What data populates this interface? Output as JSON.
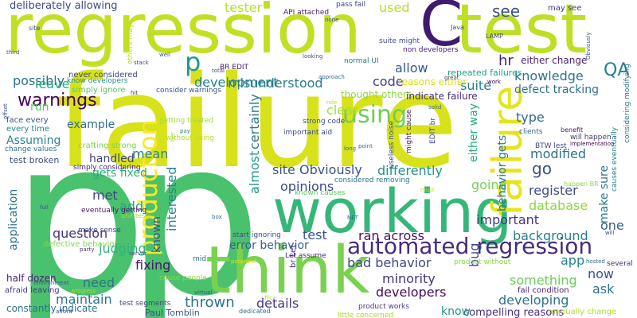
{
  "words": [
    {
      "text": "failure",
      "color": "#d7e21a",
      "vertical": false
    },
    {
      "text": "regression",
      "color": "#c2df23",
      "vertical": false
    },
    {
      "text": "test",
      "color": "#bddf26",
      "vertical": false
    },
    {
      "text": "C",
      "color": "#3f1a6e",
      "vertical": false
    },
    {
      "text": "p",
      "color": "#4ac16d",
      "vertical": false
    },
    {
      "text": "p",
      "color": "#4ac16d",
      "vertical": false
    },
    {
      "text": "working",
      "color": "#35b779",
      "vertical": false
    },
    {
      "text": "think",
      "color": "#7ad151",
      "vertical": false
    },
    {
      "text": "automated regression",
      "color": "#472c7a",
      "vertical": false
    },
    {
      "text": "production",
      "color": "#fde725",
      "vertical": true
    },
    {
      "text": "failure",
      "color": "#e5e419",
      "vertical": true
    },
    {
      "text": "using",
      "color": "#6ece58",
      "vertical": false
    },
    {
      "text": "p",
      "color": "#1f988b",
      "vertical": false
    },
    {
      "text": "see",
      "color": "#3b528b",
      "vertical": false
    },
    {
      "text": "QA",
      "color": "#26828e",
      "vertical": false
    },
    {
      "text": "warnings",
      "color": "#440154",
      "vertical": false
    },
    {
      "text": "deliberately allowing",
      "color": "#3e4a89",
      "vertical": false
    },
    {
      "text": "tester",
      "color": "#b5de2b",
      "vertical": false
    },
    {
      "text": "used",
      "color": "#b8de29",
      "vertical": false
    },
    {
      "text": "possibly",
      "color": "#2d718e",
      "vertical": false
    },
    {
      "text": "misunderstood",
      "color": "#297b8e",
      "vertical": false
    },
    {
      "text": "development",
      "color": "#25848e",
      "vertical": false
    },
    {
      "text": "allow",
      "color": "#38588c",
      "vertical": false
    },
    {
      "text": "code",
      "color": "#433e85",
      "vertical": false
    },
    {
      "text": "hr",
      "color": "#482374",
      "vertical": false
    },
    {
      "text": "either change",
      "color": "#481f70",
      "vertical": false
    },
    {
      "text": "knowledge",
      "color": "#2c728e",
      "vertical": false
    },
    {
      "text": "suite",
      "color": "#27808e",
      "vertical": false
    },
    {
      "text": "defect tracking",
      "color": "#2e6f8e",
      "vertical": false
    },
    {
      "text": "leave",
      "color": "#25ab82",
      "vertical": false
    },
    {
      "text": "run",
      "color": "#5ec962",
      "vertical": false
    },
    {
      "text": "clear",
      "color": "#a8db34",
      "vertical": false
    },
    {
      "text": "thought others",
      "color": "#8fd744",
      "vertical": false
    },
    {
      "text": "reasons either",
      "color": "#dde318",
      "vertical": false
    },
    {
      "text": "indicate failure",
      "color": "#472d7b",
      "vertical": false
    },
    {
      "text": "repeated failures",
      "color": "#1fa088",
      "vertical": false
    },
    {
      "text": "example",
      "color": "#306a8e",
      "vertical": false
    },
    {
      "text": "mean",
      "color": "#25858e",
      "vertical": false
    },
    {
      "text": "Assuming",
      "color": "#26828e",
      "vertical": false
    },
    {
      "text": "handled",
      "color": "#414487",
      "vertical": false
    },
    {
      "text": "certainly",
      "color": "#2a788e",
      "vertical": true
    },
    {
      "text": "almost",
      "color": "#1e9b8a",
      "vertical": true
    },
    {
      "text": "site Obviously",
      "color": "#3b518b",
      "vertical": false
    },
    {
      "text": "differently",
      "color": "#20928c",
      "vertical": false
    },
    {
      "text": "go",
      "color": "#3c4f8a",
      "vertical": false
    },
    {
      "text": "type",
      "color": "#31688e",
      "vertical": false
    },
    {
      "text": "modified",
      "color": "#2c728e",
      "vertical": false
    },
    {
      "text": "opinions",
      "color": "#3e4989",
      "vertical": false
    },
    {
      "text": "going",
      "color": "#77d153",
      "vertical": false
    },
    {
      "text": "register",
      "color": "#3d4d8a",
      "vertical": false
    },
    {
      "text": "database",
      "color": "#8bd646",
      "vertical": false
    },
    {
      "text": "make sure",
      "color": "#2a788e",
      "vertical": true
    },
    {
      "text": "gets fixed",
      "color": "#27ad81",
      "vertical": false
    },
    {
      "text": "interested",
      "color": "#24878e",
      "vertical": true
    },
    {
      "text": "met",
      "color": "#404688",
      "vertical": false
    },
    {
      "text": "add",
      "color": "#20a386",
      "vertical": false
    },
    {
      "text": "question",
      "color": "#46337f",
      "vertical": false
    },
    {
      "text": "judging",
      "color": "#2fb47c",
      "vertical": false
    },
    {
      "text": "known",
      "color": "#3b528b",
      "vertical": true
    },
    {
      "text": "fixing",
      "color": "#481769",
      "vertical": false
    },
    {
      "text": "error behavior",
      "color": "#33638d",
      "vertical": false
    },
    {
      "text": "ran across",
      "color": "#471164",
      "vertical": false
    },
    {
      "text": "important",
      "color": "#453581",
      "vertical": false
    },
    {
      "text": "background",
      "color": "#26818e",
      "vertical": false
    },
    {
      "text": "one",
      "color": "#365d8d",
      "vertical": false
    },
    {
      "text": "app",
      "color": "#26828e",
      "vertical": false
    },
    {
      "text": "test",
      "color": "#39558c",
      "vertical": false
    },
    {
      "text": "bad behavior",
      "color": "#3f4788",
      "vertical": false
    },
    {
      "text": "minority",
      "color": "#46327e",
      "vertical": false
    },
    {
      "text": "bug",
      "color": "#3d4e8a",
      "vertical": true
    },
    {
      "text": "something",
      "color": "#6ccd5a",
      "vertical": false
    },
    {
      "text": "now",
      "color": "#3b528b",
      "vertical": false
    },
    {
      "text": "ask",
      "color": "#2c738e",
      "vertical": false
    },
    {
      "text": "developing",
      "color": "#2c728e",
      "vertical": false
    },
    {
      "text": "developers",
      "color": "#46085c",
      "vertical": false
    },
    {
      "text": "compelling reasons",
      "color": "#46307e",
      "vertical": false
    },
    {
      "text": "thrown",
      "color": "#2c738e",
      "vertical": false
    },
    {
      "text": "details",
      "color": "#453882",
      "vertical": false
    },
    {
      "text": "know",
      "color": "#1f948c",
      "vertical": false
    },
    {
      "text": "need",
      "color": "#2d718e",
      "vertical": false
    },
    {
      "text": "maintain",
      "color": "#2c728e",
      "vertical": false
    },
    {
      "text": "application",
      "color": "#2d718e",
      "vertical": true
    },
    {
      "text": "Paul Tomblin",
      "color": "#3a548c",
      "vertical": false
    },
    {
      "text": "half dozen",
      "color": "#482576",
      "vertical": false
    },
    {
      "text": "constantly indicate",
      "color": "#2c728e",
      "vertical": false
    },
    {
      "text": "test broken",
      "color": "#3e4c8a",
      "vertical": false
    },
    {
      "text": "never considered",
      "color": "#414487",
      "vertical": false
    },
    {
      "text": "simply ignore",
      "color": "#5cc863",
      "vertical": false
    },
    {
      "text": "consider warnings",
      "color": "#3b528b",
      "vertical": false
    },
    {
      "text": "know developers",
      "color": "#21918c",
      "vertical": false
    },
    {
      "text": "face every",
      "color": "#3b528b",
      "vertical": false
    },
    {
      "text": "every time",
      "color": "#24868e",
      "vertical": false
    },
    {
      "text": "crafting strong",
      "color": "#7fd34e",
      "vertical": false
    },
    {
      "text": "simply considering",
      "color": "#482475",
      "vertical": false
    },
    {
      "text": "change values",
      "color": "#2b748e",
      "vertical": false
    },
    {
      "text": "without using",
      "color": "#b5de2b",
      "vertical": false
    },
    {
      "text": "getting treated",
      "color": "#a2da37",
      "vertical": false
    },
    {
      "text": "eventually getting",
      "color": "#481769",
      "vertical": false
    },
    {
      "text": "unit tests",
      "color": "#b0dd2f",
      "vertical": false
    },
    {
      "text": "make sense",
      "color": "#3f4788",
      "vertical": false
    },
    {
      "text": "defective behavior",
      "color": "#84d44b",
      "vertical": false
    },
    {
      "text": "cause people",
      "color": "#8bd646",
      "vertical": false
    },
    {
      "text": "afraid leaving",
      "color": "#443983",
      "vertical": false
    },
    {
      "text": "test segments",
      "color": "#3e4a89",
      "vertical": false
    },
    {
      "text": "product works",
      "color": "#433e85",
      "vertical": false
    },
    {
      "text": "little concerned",
      "color": "#a0da39",
      "vertical": false
    },
    {
      "text": "fail condition",
      "color": "#482173",
      "vertical": false
    },
    {
      "text": "manually change",
      "color": "#b2dd2d",
      "vertical": false
    },
    {
      "text": "product without",
      "color": "#8bd646",
      "vertical": false
    },
    {
      "text": "strong code",
      "color": "#3e4c8a",
      "vertical": false
    },
    {
      "text": "important aid",
      "color": "#3f4889",
      "vertical": false
    },
    {
      "text": "considered removing",
      "color": "#2a768e",
      "vertical": false
    },
    {
      "text": "known causes",
      "color": "#5ec962",
      "vertical": false
    },
    {
      "text": "start ignoring",
      "color": "#3d4e8a",
      "vertical": false
    },
    {
      "text": "Let assume",
      "color": "#472a7a",
      "vertical": false
    },
    {
      "text": "dedicated",
      "color": "#2e6e8e",
      "vertical": false
    },
    {
      "text": "BR EDIT",
      "color": "#482071",
      "vertical": false
    },
    {
      "text": "API attached",
      "color": "#481d6f",
      "vertical": false
    },
    {
      "text": "suite might",
      "color": "#3e4a89",
      "vertical": false
    },
    {
      "text": "pass fail",
      "color": "#414487",
      "vertical": false
    },
    {
      "text": "may see",
      "color": "#433e85",
      "vertical": false
    },
    {
      "text": "non developers",
      "color": "#482374",
      "vertical": false
    },
    {
      "text": "normal UI",
      "color": "#2a778e",
      "vertical": false
    },
    {
      "text": "will happen",
      "color": "#44397d",
      "vertical": false
    },
    {
      "text": "BTW lest",
      "color": "#3f4788",
      "vertical": false
    },
    {
      "text": "clients",
      "color": "#31688e",
      "vertical": false
    },
    {
      "text": "benefit",
      "color": "#481b6d",
      "vertical": false
    },
    {
      "text": "considering modifying",
      "color": "#2b758e",
      "vertical": true
    },
    {
      "text": "causes eventually",
      "color": "#277f8e",
      "vertical": true
    },
    {
      "text": "happen BR",
      "color": "#8bd646",
      "vertical": false
    },
    {
      "text": "either way",
      "color": "#25ac82",
      "vertical": true
    },
    {
      "text": "EDIT br",
      "color": "#3f4788",
      "vertical": true
    },
    {
      "text": "behavior gets",
      "color": "#2a788e",
      "vertical": true
    },
    {
      "text": "might cause",
      "color": "#481c6e",
      "vertical": true
    },
    {
      "text": "useless noise",
      "color": "#3b518b",
      "vertical": true
    },
    {
      "text": "br Let",
      "color": "#472d7b",
      "vertical": true
    },
    {
      "text": "total",
      "color": "#3c4f8a",
      "vertical": false
    },
    {
      "text": "hit",
      "color": "#46337f",
      "vertical": false
    },
    {
      "text": "stack",
      "color": "#3e4c8a",
      "vertical": false
    },
    {
      "text": "third",
      "color": "#3b528b",
      "vertical": false
    },
    {
      "text": "site",
      "color": "#3b528b",
      "vertical": false
    },
    {
      "text": "tier",
      "color": "#a0da39",
      "vertical": true
    },
    {
      "text": "Java",
      "color": "#414487",
      "vertical": false
    },
    {
      "text": "LAMP",
      "color": "#3f4788",
      "vertical": false
    },
    {
      "text": "others may",
      "color": "#bddf26",
      "vertical": true
    },
    {
      "text": "pay",
      "color": "#25848e",
      "vertical": false
    },
    {
      "text": "box",
      "color": "#2d708e",
      "vertical": false
    },
    {
      "text": "several",
      "color": "#482979",
      "vertical": false
    },
    {
      "text": "mid",
      "color": "#2a788e",
      "vertical": false
    },
    {
      "text": "point",
      "color": "#2d708e",
      "vertical": false
    },
    {
      "text": "long",
      "color": "#2d708e",
      "vertical": false
    },
    {
      "text": "work",
      "color": "#440154",
      "vertical": false
    },
    {
      "text": "solid",
      "color": "#31688e",
      "vertical": false
    },
    {
      "text": "virtual",
      "color": "#3b528b",
      "vertical": false
    },
    {
      "text": "server",
      "color": "#3b528b",
      "vertical": false
    },
    {
      "text": "party",
      "color": "#46327e",
      "vertical": false
    },
    {
      "text": "full",
      "color": "#3b528b",
      "vertical": false
    },
    {
      "text": "potential",
      "color": "#d8e219",
      "vertical": false
    },
    {
      "text": "NET",
      "color": "#2d708e",
      "vertical": false
    },
    {
      "text": "approach",
      "color": "#31688e",
      "vertical": false
    },
    {
      "text": "great",
      "color": "#3b528b",
      "vertical": false
    },
    {
      "text": "looking",
      "color": "#3b528b",
      "vertical": false
    },
    {
      "text": "idea",
      "color": "#b5de2b",
      "vertical": false
    },
    {
      "text": "well",
      "color": "#3b528b",
      "vertical": false
    },
    {
      "text": "implementation",
      "color": "#440154",
      "vertical": false
    },
    {
      "text": "hosted",
      "color": "#2d708e",
      "vertical": false
    },
    {
      "text": "none",
      "color": "#3b528b",
      "vertical": false
    },
    {
      "text": "afford",
      "color": "#3b528b",
      "vertical": false
    },
    {
      "text": "environment",
      "color": "#3b528b",
      "vertical": false
    },
    {
      "text": "progress",
      "color": "#b5de2b",
      "vertical": false
    },
    {
      "text": "offset",
      "color": "#3b528b",
      "vertical": true
    },
    {
      "text": "Obviously",
      "color": "#3b528b",
      "vertical": true
    },
    {
      "text": "role",
      "color": "#b5de2b",
      "vertical": false
    },
    {
      "text": "must",
      "color": "#b5de2b",
      "vertical": false
    },
    {
      "text": "office",
      "color": "#b5de2b",
      "vertical": false
    },
    {
      "text": "will",
      "color": "#3b528b",
      "vertical": false
    }
  ]
}
